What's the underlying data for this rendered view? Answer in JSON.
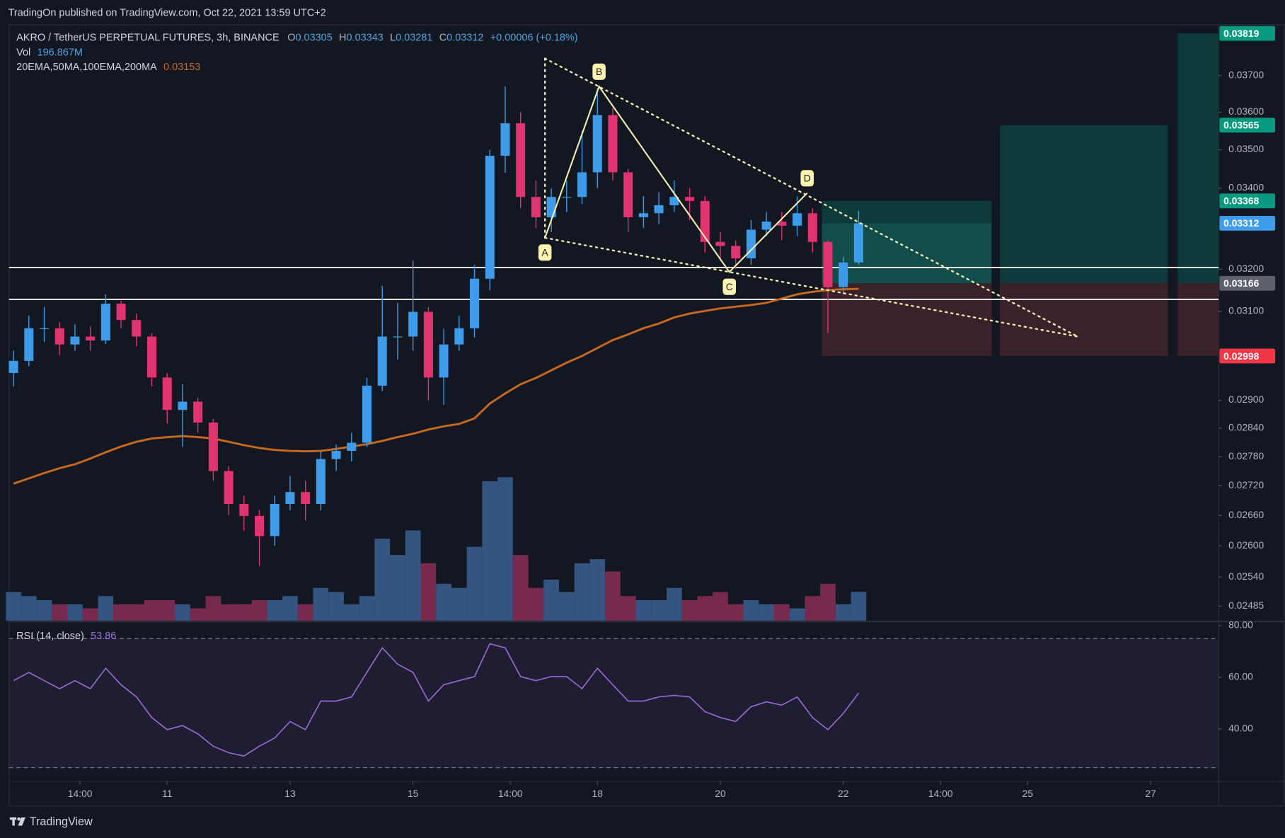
{
  "header": {
    "publisher": "TradingOn published on TradingView.com, Oct 22, 2021 13:59 UTC+2"
  },
  "footer": {
    "brand": "TradingView"
  },
  "chart_data": [
    {
      "type": "candlestick",
      "symbol": "AKRO / TetherUS PERPETUAL FUTURES, 3h, BINANCE",
      "legend": [
        {
          "key": "O",
          "value": 0.03305
        },
        {
          "key": "H",
          "value": 0.03343
        },
        {
          "key": "L",
          "value": 0.03281
        },
        {
          "key": "C",
          "value": 0.03312
        }
      ],
      "change": "+0.00006 (+0.18%)",
      "up_color": "#3d9be9",
      "down_color": "#e0336f",
      "log_scale": true,
      "grid": false,
      "xlim": [
        8.427,
        28.107
      ],
      "ylim": [
        0.02458,
        0.03844
      ],
      "xticks": [
        {
          "value": 9.583,
          "label": "14:00"
        },
        11,
        13,
        15,
        {
          "value": 16.583,
          "label": "14:00"
        },
        18,
        20,
        22,
        {
          "value": 23.583,
          "label": "14:00"
        },
        25,
        27
      ],
      "yticks": [
        {
          "value": 0.037,
          "label": "0.03700"
        },
        {
          "value": 0.036,
          "label": "0.03600"
        },
        {
          "value": 0.035,
          "label": "0.03500"
        },
        {
          "value": 0.034,
          "label": "0.03400"
        },
        {
          "value": 0.032,
          "label": "0.03200"
        },
        {
          "value": 0.031,
          "label": "0.03100"
        },
        {
          "value": 0.029,
          "label": "0.02900"
        },
        {
          "value": 0.0284,
          "label": "0.02840"
        },
        {
          "value": 0.0278,
          "label": "0.02780"
        },
        {
          "value": 0.0272,
          "label": "0.02720"
        },
        {
          "value": 0.0266,
          "label": "0.02660"
        },
        {
          "value": 0.026,
          "label": "0.02600"
        },
        {
          "value": 0.0254,
          "label": "0.02540"
        },
        0.02485
      ],
      "x": [
        8.5,
        8.75,
        9,
        9.25,
        9.5,
        9.75,
        10,
        10.25,
        10.5,
        10.75,
        11,
        11.25,
        11.5,
        11.75,
        12,
        12.25,
        12.5,
        12.75,
        13,
        13.25,
        13.5,
        13.75,
        14,
        14.25,
        14.5,
        14.75,
        15,
        15.25,
        15.5,
        15.75,
        16,
        16.25,
        16.5,
        16.75,
        17,
        17.25,
        17.5,
        17.75,
        18,
        18.25,
        18.5,
        18.75,
        19,
        19.25,
        19.5,
        19.75,
        20,
        20.25,
        20.5,
        20.75,
        21,
        21.25,
        21.5,
        21.75,
        22,
        22.25
      ],
      "open": [
        0.0296,
        0.02987,
        0.03061,
        0.03061,
        0.03024,
        0.03042,
        0.03033,
        0.03118,
        0.0308,
        0.03042,
        0.0295,
        0.02879,
        0.02897,
        0.02852,
        0.0275,
        0.02683,
        0.02659,
        0.02619,
        0.02683,
        0.02707,
        0.02683,
        0.02775,
        0.02792,
        0.02809,
        0.02932,
        0.03042,
        0.03042,
        0.03099,
        0.0295,
        0.03024,
        0.03061,
        0.03177,
        0.03484,
        0.0357,
        0.03378,
        0.03327,
        0.03378,
        0.03378,
        0.03441,
        0.03592,
        0.03441,
        0.03327,
        0.03337,
        0.03357,
        0.03378,
        0.03368,
        0.03266,
        0.03256,
        0.03226,
        0.03296,
        0.03316,
        0.03306,
        0.03337,
        0.03266,
        0.03157,
        0.03216
      ],
      "high": [
        0.0301,
        0.0309,
        0.0311,
        0.03075,
        0.0307,
        0.03065,
        0.0314,
        0.03125,
        0.03095,
        0.0305,
        0.0296,
        0.02935,
        0.02905,
        0.0286,
        0.0276,
        0.027,
        0.0267,
        0.027,
        0.0274,
        0.0273,
        0.0279,
        0.02805,
        0.0283,
        0.0295,
        0.0316,
        0.0312,
        0.0322,
        0.0311,
        0.0306,
        0.0309,
        0.0321,
        0.035,
        0.0367,
        0.036,
        0.0342,
        0.034,
        0.0342,
        0.0355,
        0.03665,
        0.0361,
        0.0345,
        0.0338,
        0.0339,
        0.0342,
        0.034,
        0.0338,
        0.0329,
        0.0327,
        0.0332,
        0.0334,
        0.0334,
        0.0338,
        0.0335,
        0.0327,
        0.0323,
        0.03343
      ],
      "low": [
        0.0293,
        0.02975,
        0.0303,
        0.03,
        0.0301,
        0.0301,
        0.03025,
        0.0306,
        0.0302,
        0.0293,
        0.0285,
        0.028,
        0.0283,
        0.0273,
        0.0266,
        0.0263,
        0.02561,
        0.026,
        0.0267,
        0.0265,
        0.0267,
        0.0275,
        0.0277,
        0.028,
        0.0292,
        0.0299,
        0.0301,
        0.029,
        0.0289,
        0.0301,
        0.0304,
        0.0315,
        0.0344,
        0.0335,
        0.033,
        0.0329,
        0.0334,
        0.0336,
        0.034,
        0.0342,
        0.0329,
        0.033,
        0.0331,
        0.0334,
        0.0332,
        0.0324,
        0.0322,
        0.032,
        0.0321,
        0.0328,
        0.0327,
        0.0328,
        0.0324,
        0.0305,
        0.0314,
        0.0321
      ],
      "close": [
        0.02987,
        0.03061,
        0.03061,
        0.03024,
        0.03042,
        0.03033,
        0.03118,
        0.0308,
        0.03042,
        0.0295,
        0.02879,
        0.02897,
        0.02852,
        0.0275,
        0.02683,
        0.02659,
        0.02619,
        0.02683,
        0.02707,
        0.02683,
        0.02775,
        0.02792,
        0.02809,
        0.02932,
        0.03042,
        0.03042,
        0.03099,
        0.0295,
        0.03024,
        0.03061,
        0.03177,
        0.03484,
        0.0357,
        0.03378,
        0.03327,
        0.03378,
        0.03378,
        0.03441,
        0.03592,
        0.03441,
        0.03327,
        0.03337,
        0.03357,
        0.03378,
        0.03368,
        0.03266,
        0.03256,
        0.03226,
        0.03296,
        0.03316,
        0.03306,
        0.03337,
        0.03266,
        0.03157,
        0.03216,
        0.03312
      ],
      "volume": {
        "label": "Vol",
        "value_label": "196.867M",
        "ylim": [
          0,
          1400
        ],
        "values": [
          196,
          168,
          140,
          112,
          112,
          84,
          168,
          112,
          112,
          140,
          140,
          112,
          84,
          168,
          112,
          112,
          140,
          140,
          168,
          112,
          224,
          196,
          112,
          168,
          560,
          448,
          616,
          392,
          252,
          224,
          504,
          952,
          980,
          448,
          224,
          280,
          196,
          392,
          420,
          336,
          168,
          140,
          140,
          224,
          140,
          168,
          196,
          112,
          140,
          112,
          112,
          84,
          168,
          252,
          112,
          196.867
        ]
      },
      "ma": {
        "label": "20EMA,50MA,100EMA,200MA",
        "value": 0.03153,
        "color": "#c8691f",
        "values": [
          0.02724,
          0.02735,
          0.02746,
          0.02756,
          0.02764,
          0.02776,
          0.02789,
          0.02801,
          0.02811,
          0.02818,
          0.02821,
          0.02823,
          0.02821,
          0.02818,
          0.02811,
          0.02804,
          0.02798,
          0.02794,
          0.02792,
          0.02791,
          0.02792,
          0.02796,
          0.02801,
          0.02806,
          0.02813,
          0.02821,
          0.02828,
          0.02837,
          0.02844,
          0.02849,
          0.02861,
          0.02893,
          0.02915,
          0.02935,
          0.02949,
          0.02966,
          0.02983,
          0.02998,
          0.03016,
          0.03034,
          0.03047,
          0.03061,
          0.03072,
          0.03086,
          0.03095,
          0.03101,
          0.03107,
          0.03111,
          0.03115,
          0.0312,
          0.0313,
          0.0314,
          0.03146,
          0.0315,
          0.03152,
          0.03153
        ]
      },
      "levels": [
        0.03204,
        0.03128
      ],
      "pattern": {
        "points": [
          {
            "label": "A",
            "x": 17.147,
            "y": 0.03276
          },
          {
            "label": "B",
            "x": 18.027,
            "y": 0.0367
          },
          {
            "label": "C",
            "x": 20.147,
            "y": 0.03193
          },
          {
            "label": "D",
            "x": 21.413,
            "y": 0.03388
          }
        ],
        "trendlines": [
          {
            "x": [
              17.147,
              25.813
            ],
            "y": [
              0.03748,
              0.03042
            ]
          },
          {
            "x": [
              17.147,
              25.813
            ],
            "y": [
              0.03276,
              0.03042
            ]
          },
          {
            "x": [
              17.147,
              17.147
            ],
            "y": [
              0.03276,
              0.03748
            ]
          }
        ]
      },
      "positions": {
        "entry": 0.03166,
        "stop": 0.02998,
        "targets": [
          0.03368,
          0.03565,
          0.03819
        ],
        "x": [
          [
            21.653,
            24.413
          ],
          [
            24.547,
            27.28
          ],
          [
            27.44,
            28.107
          ]
        ],
        "active": 0
      }
    },
    {
      "type": "line",
      "title": "RSI (14, close)",
      "value": 53.86,
      "color": "#9c6ad6",
      "ylim": [
        19.7,
        81
      ],
      "bands": [
        75,
        25
      ],
      "yticks": [
        {
          "value": 80,
          "label": "80.00"
        },
        {
          "value": 60,
          "label": "60.00"
        },
        {
          "value": 40,
          "label": "40.00"
        }
      ],
      "values": [
        58.7,
        61.9,
        58.7,
        55.6,
        58.7,
        55.6,
        63.5,
        57.1,
        52.4,
        44.4,
        39.7,
        41.3,
        38.1,
        33.3,
        30.8,
        29.5,
        33.3,
        36.5,
        42.9,
        39.7,
        50.8,
        50.8,
        52.4,
        61.9,
        71.4,
        65.1,
        61.9,
        50.8,
        57.1,
        58.7,
        60.3,
        73,
        71.4,
        60.3,
        58.7,
        60.3,
        60.3,
        55.6,
        63.5,
        57.1,
        50.8,
        50.8,
        52.4,
        53,
        52.4,
        46.7,
        44.4,
        42.9,
        48.6,
        50.5,
        49.2,
        52.4,
        44.4,
        39.7,
        46,
        53.86
      ]
    }
  ]
}
